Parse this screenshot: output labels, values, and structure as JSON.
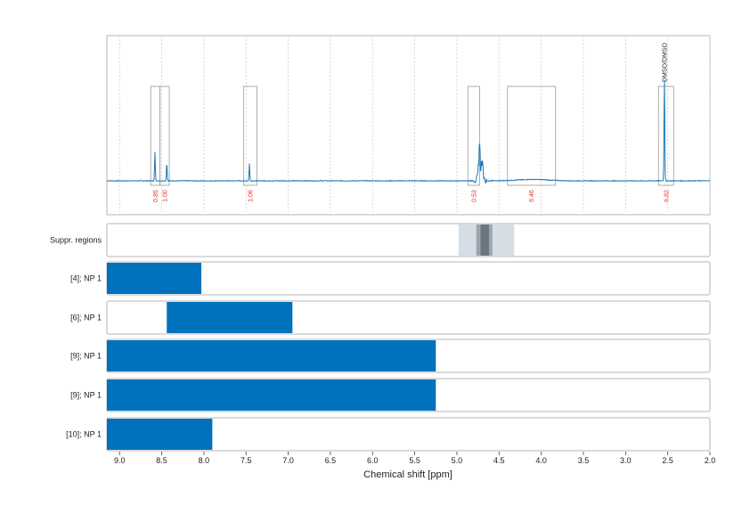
{
  "chart_data": {
    "type": "line",
    "title": "",
    "xlabel": "Chemical shift [ppm]",
    "ylabel": "",
    "xlim": [
      9.15,
      2.0
    ],
    "x_ticks": [
      "9.0",
      "8.5",
      "8.0",
      "7.5",
      "7.0",
      "6.5",
      "6.0",
      "5.5",
      "5.0",
      "4.5",
      "4.0",
      "3.5",
      "3.0",
      "2.5",
      "2.0"
    ],
    "spectrum": {
      "color": "#1f77b4",
      "peaks": [
        {
          "ppm": 8.58,
          "height": 0.25
        },
        {
          "ppm": 8.44,
          "height": 0.16
        },
        {
          "ppm": 7.46,
          "height": 0.15
        },
        {
          "ppm": 4.72,
          "height": 0.4
        },
        {
          "ppm": 2.54,
          "height": 0.92
        }
      ]
    },
    "integrals": [
      {
        "from": 8.63,
        "to": 8.52,
        "value": "0.85"
      },
      {
        "from": 8.52,
        "to": 8.41,
        "value": "1.00"
      },
      {
        "from": 7.53,
        "to": 7.37,
        "value": "1.06"
      },
      {
        "from": 4.87,
        "to": 4.73,
        "value": "0.53"
      },
      {
        "from": 4.4,
        "to": 3.83,
        "value": "6.46"
      },
      {
        "from": 2.61,
        "to": 2.43,
        "value": "6.82"
      }
    ],
    "reference_label": {
      "ppm": 2.54,
      "text": "DMSO/DMSO"
    },
    "suppressed_regions": {
      "label": "Suppr. regions",
      "bands": [
        {
          "from": 4.98,
          "to": 4.32,
          "shade": "light"
        },
        {
          "from": 4.77,
          "to": 4.58,
          "shade": "mid"
        },
        {
          "from": 4.72,
          "to": 4.62,
          "shade": "dark"
        }
      ]
    },
    "bar_rows": [
      {
        "label": "[4]; NP 1",
        "from": 9.15,
        "to": 8.03
      },
      {
        "label": "[6]; NP 1",
        "from": 8.44,
        "to": 6.95
      },
      {
        "label": "[9]; NP 1",
        "from": 9.15,
        "to": 5.25
      },
      {
        "label": "[9]; NP 1",
        "from": 9.15,
        "to": 5.25
      },
      {
        "label": "[10]; NP 1",
        "from": 9.15,
        "to": 7.9
      }
    ],
    "bar_color": "#0072bd"
  }
}
